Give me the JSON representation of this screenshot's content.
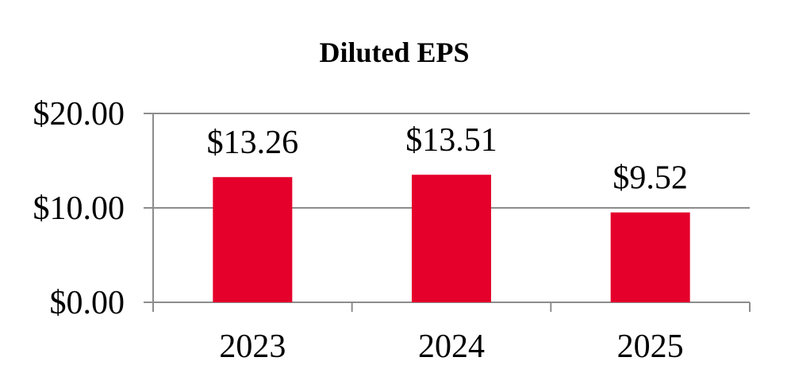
{
  "chart_data": {
    "type": "bar",
    "title": "Diluted EPS",
    "categories": [
      "2023",
      "2024",
      "2025"
    ],
    "values": [
      13.26,
      13.51,
      9.52
    ],
    "data_labels": [
      "$13.26",
      "$13.51",
      "$9.52"
    ],
    "y_ticks": [
      0,
      10,
      20
    ],
    "y_tick_labels": [
      "$0.00",
      "$10.00",
      "$20.00"
    ],
    "ylim": [
      0,
      20
    ],
    "xlabel": "",
    "ylabel": "",
    "grid": true,
    "legend": "none",
    "bar_color": "#E4002B",
    "gridline_color": "#8C8C8C",
    "axis_color": "#8C8C8C"
  }
}
